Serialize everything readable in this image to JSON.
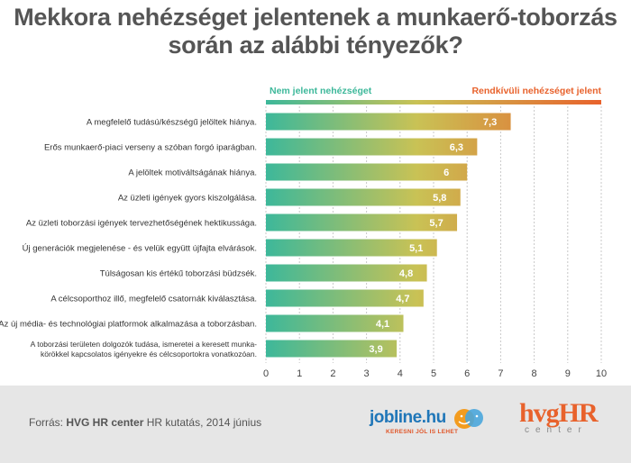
{
  "title": {
    "line1": "Mekkora nehézséget jelentenek a munkaerő-toborzás",
    "line2": "során az alábbi tényezők?"
  },
  "scale": {
    "low_label": "Nem jelent nehézséget",
    "high_label": "Rendkívüli nehézséget jelent",
    "low_color": "#3db89a",
    "high_color": "#e8622c"
  },
  "chart_data": {
    "type": "bar",
    "orientation": "horizontal",
    "categories": [
      "A megfelelő tudású/készségű jelöltek hiánya.",
      "Erős munkaerő-piaci verseny a szóban forgó iparágban.",
      "A jelöltek motiváltságának hiánya.",
      "Az üzleti igények gyors kiszolgálása.",
      "Az üzleti toborzási igények tervezhetőségének hektikussága.",
      "Új generációk megjelenése - és velük együtt újfajta elvárások.",
      "Túlságosan kis értékű toborzási büdzsék.",
      "A célcsoporthoz illő, megfelelő csatornák kiválasztása.",
      "Az új média- és technológiai platformok alkalmazása a toborzásban.",
      "A toborzási területen dolgozók tudása, ismeretei a keresett munka-|körökkel kapcsolatos igényekre és célcsoportokra vonatkozóan."
    ],
    "values": [
      7.3,
      6.3,
      6,
      5.8,
      5.7,
      5.1,
      4.8,
      4.7,
      4.1,
      3.9
    ],
    "value_labels": [
      "7,3",
      "6,3",
      "6",
      "5,8",
      "5,7",
      "5,1",
      "4,8",
      "4,7",
      "4,1",
      "3,9"
    ],
    "xlim": [
      0,
      10
    ],
    "xticks": [
      0,
      1,
      2,
      3,
      4,
      5,
      6,
      7,
      8,
      9,
      10
    ],
    "grid": true
  },
  "footer": {
    "source_prefix": "Forrás: ",
    "source_bold": "HVG HR center",
    "source_rest": " HR kutatás, 2014 június",
    "jobline_name": "jobline.hu",
    "jobline_slogan": "KERESNI JÓL IS LEHET",
    "hvg_name": "hvgHR",
    "hvg_sub": "center"
  }
}
